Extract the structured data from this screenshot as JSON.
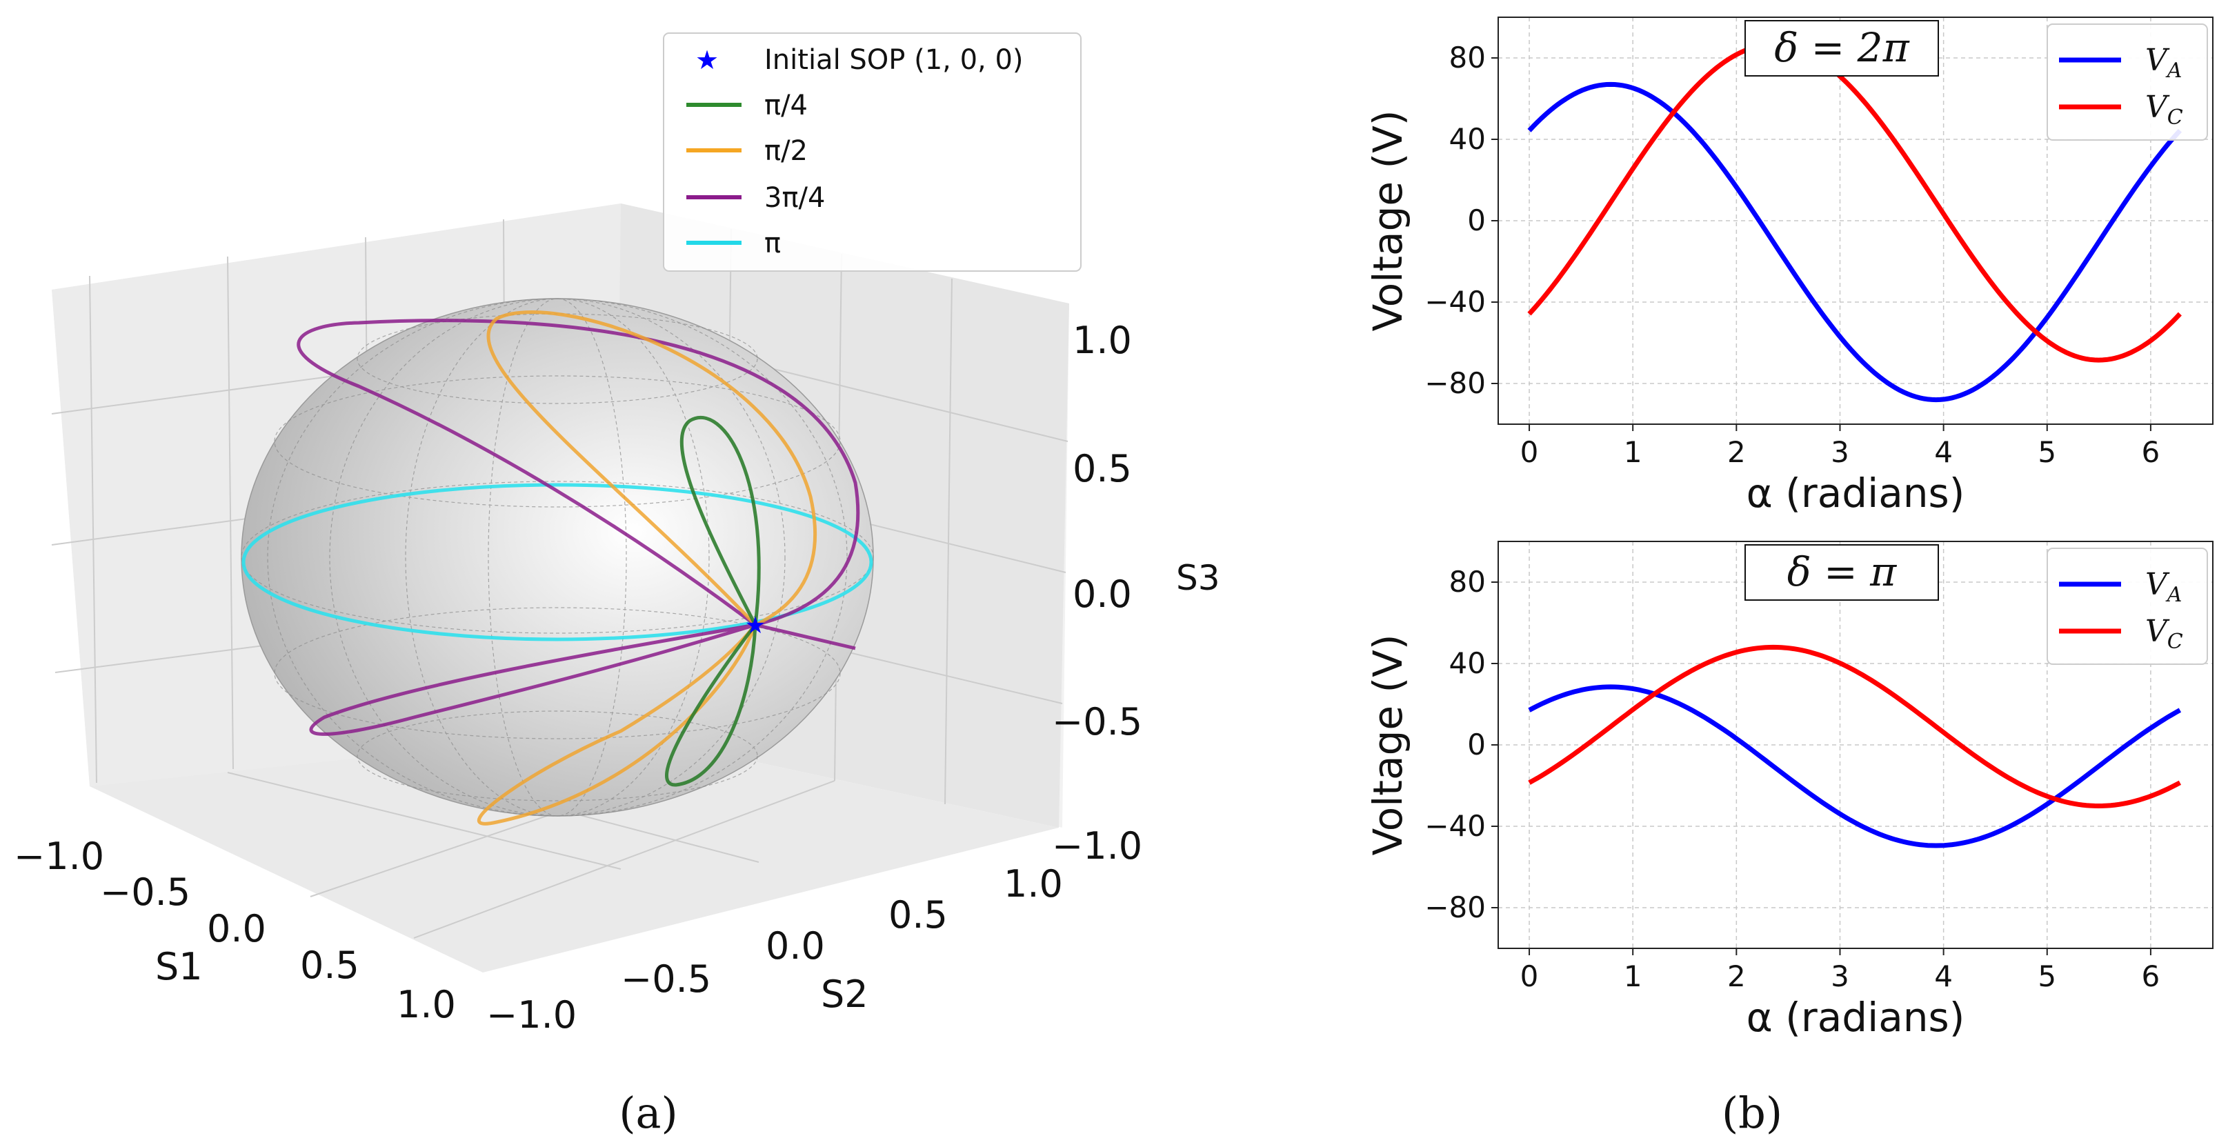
{
  "chart_data": [
    {
      "panel": "(a)",
      "type": "scatter",
      "subtype": "3d-poincare-sphere",
      "axes": {
        "x": {
          "label": "S1",
          "ticks": [
            "−1.0",
            "−0.5",
            "0.0",
            "0.5",
            "1.0"
          ],
          "range": [
            -1,
            1
          ]
        },
        "y": {
          "label": "S2",
          "ticks": [
            "−1.0",
            "−0.5",
            "0.0",
            "0.5",
            "1.0"
          ],
          "range": [
            -1,
            1
          ]
        },
        "z": {
          "label": "S3",
          "ticks": [
            "1.0",
            "0.5",
            "0.0",
            "−0.5",
            "−1.0"
          ],
          "range": [
            -1,
            1
          ]
        }
      },
      "initial_point": {
        "name": "Initial SOP (1, 0, 0)",
        "s1": 1,
        "s2": 0,
        "s3": 0,
        "color": "#0000ff",
        "marker": "★"
      },
      "series": [
        {
          "name": "π/4",
          "delta": 0.7854,
          "color": "#2e8b2e"
        },
        {
          "name": "π/2",
          "delta": 1.5708,
          "color": "#f5a623"
        },
        {
          "name": "3π/4",
          "delta": 2.3562,
          "color": "#8b1c8b"
        },
        {
          "name": "π",
          "delta": 3.1416,
          "color": "#22d8e8"
        }
      ],
      "legend_position": "top-right",
      "caption": "(a)"
    },
    {
      "panel": "(b) top",
      "type": "line",
      "title": "δ = 2π",
      "xlabel": "α (radians)",
      "ylabel": "Voltage (V)",
      "xlim": [
        -0.3,
        6.6
      ],
      "ylim": [
        -100,
        100
      ],
      "xticks": [
        0,
        1,
        2,
        3,
        4,
        5,
        6
      ],
      "yticks": [
        -80,
        -40,
        0,
        40,
        80
      ],
      "grid": true,
      "legend_position": "top-right",
      "series": [
        {
          "name": "V",
          "sub": "A",
          "color": "#0000ff",
          "amplitude": 77.5,
          "offset": -10.5,
          "phase_deg": -45
        },
        {
          "name": "V",
          "sub": "C",
          "color": "#ff0000",
          "amplitude": 77.5,
          "offset": 9,
          "phase_deg": 45
        }
      ]
    },
    {
      "panel": "(b) bottom",
      "type": "line",
      "title": "δ = π",
      "xlabel": "α (radians)",
      "ylabel": "Voltage (V)",
      "xlim": [
        -0.3,
        6.6
      ],
      "ylim": [
        -100,
        100
      ],
      "xticks": [
        0,
        1,
        2,
        3,
        4,
        5,
        6
      ],
      "yticks": [
        -80,
        -40,
        0,
        40,
        80
      ],
      "grid": true,
      "legend_position": "top-right",
      "series": [
        {
          "name": "V",
          "sub": "A",
          "color": "#0000ff",
          "amplitude": 39,
          "offset": -10.5,
          "phase_deg": -45
        },
        {
          "name": "V",
          "sub": "C",
          "color": "#ff0000",
          "amplitude": 39,
          "offset": 9,
          "phase_deg": 45
        }
      ]
    }
  ],
  "captions": {
    "a": "(a)",
    "b": "(b)"
  }
}
